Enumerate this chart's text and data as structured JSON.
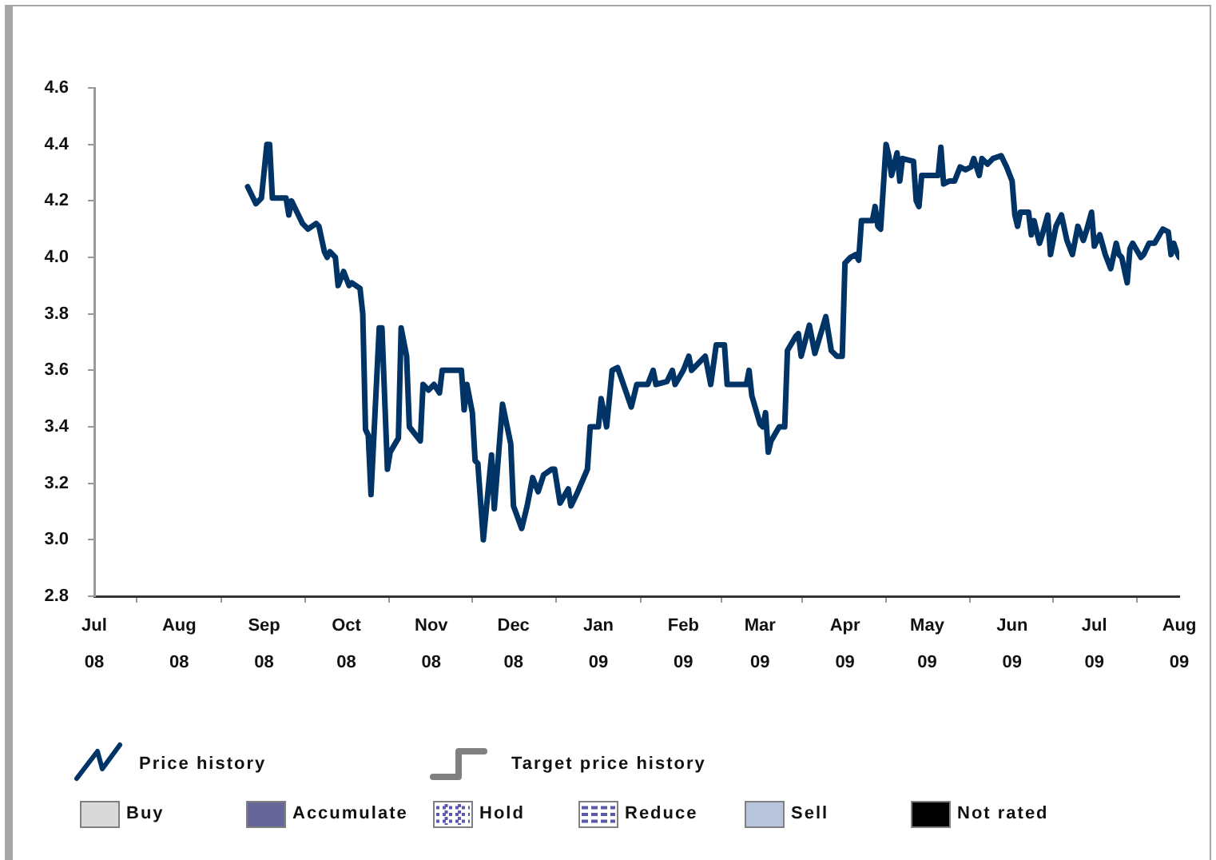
{
  "chart_data": {
    "type": "line",
    "series": [
      {
        "name": "Price history",
        "color": "#003366",
        "x": [
          "2008-08-26",
          "2008-08-29",
          "2008-08-31",
          "2008-09-02",
          "2008-09-03",
          "2008-09-04",
          "2008-09-09",
          "2008-09-10",
          "2008-09-11",
          "2008-09-13",
          "2008-09-15",
          "2008-09-17",
          "2008-09-20",
          "2008-09-21",
          "2008-09-23",
          "2008-09-24",
          "2008-09-25",
          "2008-09-27",
          "2008-09-28",
          "2008-09-30",
          "2008-10-02",
          "2008-10-03",
          "2008-10-06",
          "2008-10-07",
          "2008-10-08",
          "2008-10-09",
          "2008-10-10",
          "2008-10-13",
          "2008-10-14",
          "2008-10-16",
          "2008-10-17",
          "2008-10-20",
          "2008-10-21",
          "2008-10-23",
          "2008-10-24",
          "2008-10-28",
          "2008-10-29",
          "2008-10-31",
          "2008-11-02",
          "2008-11-04",
          "2008-11-05",
          "2008-11-12",
          "2008-11-13",
          "2008-11-14",
          "2008-11-16",
          "2008-11-17",
          "2008-11-18",
          "2008-11-20",
          "2008-11-23",
          "2008-11-24",
          "2008-11-27",
          "2008-11-30",
          "2008-12-01",
          "2008-12-04",
          "2008-12-06",
          "2008-12-08",
          "2008-12-10",
          "2008-12-12",
          "2008-12-15",
          "2008-12-16",
          "2008-12-18",
          "2008-12-21",
          "2008-12-22",
          "2008-12-24",
          "2008-12-28",
          "2008-12-29",
          "2009-01-01",
          "2009-01-02",
          "2009-01-04",
          "2009-01-06",
          "2009-01-08",
          "2009-01-13",
          "2009-01-15",
          "2009-01-19",
          "2009-01-21",
          "2009-01-22",
          "2009-01-26",
          "2009-01-28",
          "2009-01-29",
          "2009-02-01",
          "2009-02-03",
          "2009-02-04",
          "2009-02-07",
          "2009-02-09",
          "2009-02-11",
          "2009-02-13",
          "2009-02-16",
          "2009-02-17",
          "2009-02-24",
          "2009-02-25",
          "2009-02-26",
          "2009-03-01",
          "2009-03-02",
          "2009-03-03",
          "2009-03-04",
          "2009-03-05",
          "2009-03-08",
          "2009-03-10",
          "2009-03-11",
          "2009-03-14",
          "2009-03-15",
          "2009-03-16",
          "2009-03-19",
          "2009-03-21",
          "2009-03-25",
          "2009-03-27",
          "2009-03-29",
          "2009-03-31",
          "2009-04-01",
          "2009-04-03",
          "2009-04-05",
          "2009-04-06",
          "2009-04-07",
          "2009-04-11",
          "2009-04-12",
          "2009-04-13",
          "2009-04-14",
          "2009-04-16",
          "2009-04-17",
          "2009-04-18",
          "2009-04-20",
          "2009-04-21",
          "2009-04-22",
          "2009-04-26",
          "2009-04-27",
          "2009-04-28",
          "2009-04-29",
          "2009-05-05",
          "2009-05-06",
          "2009-05-07",
          "2009-05-09",
          "2009-05-11",
          "2009-05-13",
          "2009-05-15",
          "2009-05-17",
          "2009-05-18",
          "2009-05-20",
          "2009-05-21",
          "2009-05-23",
          "2009-05-25",
          "2009-05-28",
          "2009-05-30",
          "2009-06-01",
          "2009-06-02",
          "2009-06-03",
          "2009-06-04",
          "2009-06-07",
          "2009-06-08",
          "2009-06-09",
          "2009-06-11",
          "2009-06-12",
          "2009-06-14",
          "2009-06-15",
          "2009-06-17",
          "2009-06-19",
          "2009-06-21",
          "2009-06-23",
          "2009-06-25",
          "2009-06-27",
          "2009-06-28",
          "2009-06-30",
          "2009-07-01",
          "2009-07-03",
          "2009-07-05",
          "2009-07-07",
          "2009-07-09",
          "2009-07-10",
          "2009-07-11",
          "2009-07-13",
          "2009-07-14",
          "2009-07-15",
          "2009-07-18",
          "2009-07-19",
          "2009-07-21",
          "2009-07-23",
          "2009-07-26",
          "2009-07-28",
          "2009-07-29",
          "2009-07-30",
          "2009-07-31",
          "2009-08-01"
        ],
        "values": [
          4.25,
          4.19,
          4.21,
          4.4,
          4.4,
          4.21,
          4.21,
          4.15,
          4.2,
          4.16,
          4.12,
          4.1,
          4.12,
          4.11,
          4.02,
          4.0,
          4.02,
          4.0,
          3.9,
          3.95,
          3.9,
          3.91,
          3.89,
          3.8,
          3.39,
          3.37,
          3.16,
          3.75,
          3.75,
          3.25,
          3.31,
          3.36,
          3.75,
          3.65,
          3.4,
          3.35,
          3.55,
          3.53,
          3.55,
          3.52,
          3.6,
          3.6,
          3.46,
          3.55,
          3.45,
          3.28,
          3.27,
          3.0,
          3.3,
          3.11,
          3.48,
          3.34,
          3.12,
          3.04,
          3.12,
          3.22,
          3.17,
          3.23,
          3.25,
          3.25,
          3.13,
          3.18,
          3.12,
          3.16,
          3.25,
          3.4,
          3.4,
          3.5,
          3.4,
          3.6,
          3.61,
          3.47,
          3.55,
          3.55,
          3.6,
          3.55,
          3.56,
          3.6,
          3.55,
          3.6,
          3.65,
          3.6,
          3.63,
          3.65,
          3.55,
          3.69,
          3.69,
          3.55,
          3.55,
          3.6,
          3.51,
          3.41,
          3.4,
          3.45,
          3.31,
          3.35,
          3.4,
          3.4,
          3.67,
          3.72,
          3.73,
          3.65,
          3.76,
          3.66,
          3.79,
          3.67,
          3.65,
          3.65,
          3.98,
          4.0,
          4.01,
          3.99,
          4.13,
          4.13,
          4.18,
          4.11,
          4.1,
          4.4,
          4.36,
          4.29,
          4.37,
          4.27,
          4.35,
          4.34,
          4.2,
          4.18,
          4.29,
          4.29,
          4.39,
          4.26,
          4.27,
          4.27,
          4.32,
          4.31,
          4.32,
          4.35,
          4.29,
          4.35,
          4.33,
          4.35,
          4.36,
          4.32,
          4.27,
          4.15,
          4.11,
          4.16,
          4.16,
          4.08,
          4.13,
          4.05,
          4.08,
          4.15,
          4.01,
          4.11,
          4.15,
          4.06,
          4.01,
          4.11,
          4.06,
          4.09,
          4.16,
          4.04,
          4.08,
          4.01,
          3.96,
          4.05,
          4.01,
          4.0,
          3.91,
          4.03,
          4.05,
          4.0,
          4.01,
          4.05,
          4.05,
          4.1,
          4.09,
          4.01,
          4.05,
          4.02,
          4.0
        ]
      },
      {
        "name": "Target price history",
        "type": "step",
        "color": "#808080"
      },
      {
        "name": "Buy",
        "type": "bar",
        "color": "#d9d9d9"
      },
      {
        "name": "Accumulate",
        "type": "bar",
        "color": "#666699"
      },
      {
        "name": "Hold",
        "type": "bar",
        "color": "#5a5aa8",
        "line_style": "dotted"
      },
      {
        "name": "Reduce",
        "type": "bar",
        "color": "#5a5aa8",
        "line_style": "dashed"
      },
      {
        "name": "Sell",
        "type": "bar",
        "color": "#b8c4dc"
      },
      {
        "name": "Not rated",
        "type": "bar",
        "color": "#000000"
      }
    ],
    "xlim": [
      "2008-07-01",
      "2009-08-01"
    ],
    "xticks": [
      {
        "value": "2008-07-01",
        "label": "Jul 08"
      },
      {
        "value": "2008-08-01",
        "label": "Aug 08"
      },
      {
        "value": "2008-09-01",
        "label": "Sep 08"
      },
      {
        "value": "2008-10-01",
        "label": "Oct 08"
      },
      {
        "value": "2008-11-01",
        "label": "Nov 08"
      },
      {
        "value": "2008-12-01",
        "label": "Dec 08"
      },
      {
        "value": "2009-01-01",
        "label": "Jan 09"
      },
      {
        "value": "2009-02-01",
        "label": "Feb 09"
      },
      {
        "value": "2009-03-01",
        "label": "Mar 09"
      },
      {
        "value": "2009-04-01",
        "label": "Apr 09"
      },
      {
        "value": "2009-05-01",
        "label": "May 09"
      },
      {
        "value": "2009-06-01",
        "label": "Jun 09"
      },
      {
        "value": "2009-07-01",
        "label": "Jul 09"
      },
      {
        "value": "2009-08-01",
        "label": "Aug 09"
      }
    ],
    "ylim": [
      2.8,
      4.6
    ],
    "yticks": [
      2.8,
      {
        "value": 3,
        "label": "3.0"
      },
      3.2,
      3.4,
      3.6,
      3.8,
      {
        "value": 4,
        "label": "4.0"
      },
      4.2,
      4.4,
      4.6
    ],
    "legend": "bottom"
  }
}
